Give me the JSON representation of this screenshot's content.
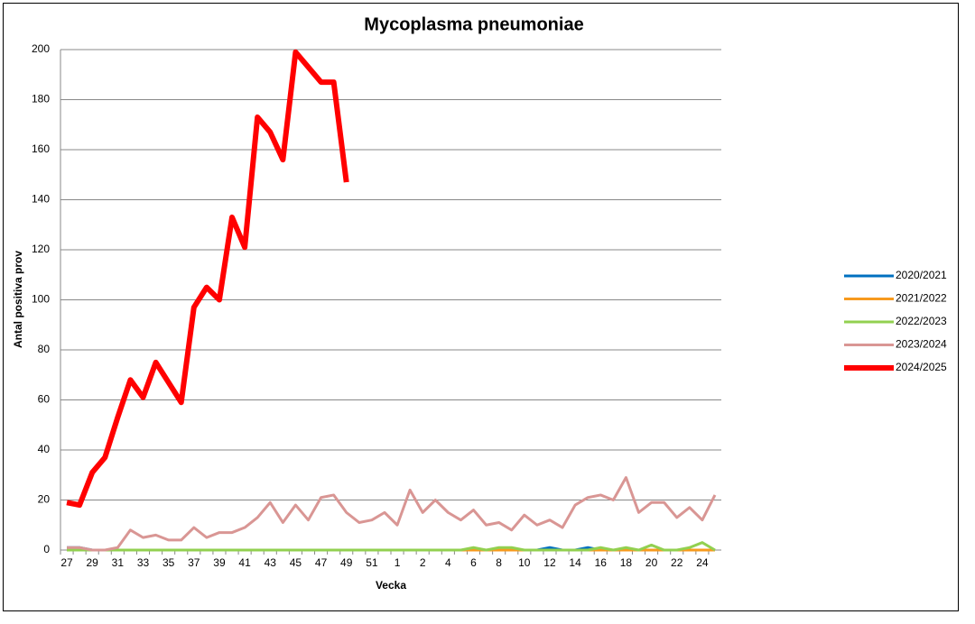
{
  "chart_data": {
    "type": "line",
    "title": "Mycoplasma pneumoniae",
    "xlabel": "Vecka",
    "ylabel": "Antal positiva prov",
    "categories": [
      "27",
      null,
      "29",
      null,
      "31",
      null,
      "33",
      null,
      "35",
      null,
      "37",
      null,
      "39",
      null,
      "41",
      null,
      "43",
      null,
      "45",
      null,
      "47",
      null,
      "49",
      null,
      "51",
      null,
      "1",
      null,
      "2",
      null,
      "4",
      null,
      "6",
      null,
      "8",
      null,
      "10",
      null,
      "12",
      null,
      "14",
      null,
      "16",
      null,
      "18",
      null,
      "20",
      null,
      "22",
      null,
      "24",
      null
    ],
    "ylim": [
      0,
      200
    ],
    "yticks": [
      0,
      20,
      40,
      60,
      80,
      100,
      120,
      140,
      160,
      180,
      200
    ],
    "grid": true,
    "legend": "right",
    "series": [
      {
        "name": "2020/2021",
        "color": "#0070c0",
        "width": 3,
        "values": [
          1,
          1,
          0,
          0,
          0,
          0,
          0,
          0,
          0,
          0,
          0,
          0,
          0,
          0,
          0,
          0,
          0,
          0,
          0,
          0,
          0,
          0,
          0,
          0,
          0,
          0,
          0,
          0,
          0,
          0,
          0,
          0,
          0,
          0,
          0,
          0,
          0,
          0,
          1,
          0,
          0,
          1,
          0,
          0,
          0,
          0,
          0,
          0,
          0,
          0,
          0,
          0
        ]
      },
      {
        "name": "2021/2022",
        "color": "#f79a1e",
        "width": 3,
        "values": [
          0,
          0,
          0,
          0,
          0,
          0,
          0,
          0,
          0,
          0,
          0,
          0,
          0,
          0,
          0,
          0,
          0,
          0,
          0,
          0,
          0,
          0,
          0,
          0,
          0,
          0,
          0,
          0,
          0,
          0,
          0,
          0,
          0,
          0,
          0,
          0,
          0,
          0,
          0,
          0,
          0,
          0,
          0,
          0,
          0,
          0,
          0,
          0,
          0,
          0,
          0,
          0
        ]
      },
      {
        "name": "2022/2023",
        "color": "#92d050",
        "width": 3,
        "values": [
          0,
          0,
          0,
          0,
          0,
          0,
          0,
          0,
          0,
          0,
          0,
          0,
          0,
          0,
          0,
          0,
          0,
          0,
          0,
          0,
          0,
          0,
          0,
          0,
          0,
          0,
          0,
          0,
          0,
          0,
          0,
          0,
          1,
          0,
          1,
          1,
          0,
          0,
          0,
          0,
          0,
          0,
          1,
          0,
          1,
          0,
          2,
          0,
          0,
          1,
          3,
          0
        ]
      },
      {
        "name": "2023/2024",
        "color": "#d99694",
        "width": 3,
        "values": [
          1,
          1,
          0,
          0,
          1,
          8,
          5,
          6,
          4,
          4,
          9,
          5,
          7,
          7,
          9,
          13,
          19,
          11,
          18,
          12,
          21,
          22,
          15,
          11,
          12,
          15,
          10,
          24,
          15,
          20,
          15,
          12,
          16,
          10,
          11,
          8,
          14,
          10,
          12,
          9,
          18,
          21,
          22,
          20,
          29,
          15,
          19,
          19,
          13,
          17,
          12,
          22
        ]
      },
      {
        "name": "2024/2025",
        "color": "#ff0000",
        "width": 6,
        "values": [
          19,
          18,
          31,
          37,
          53,
          68,
          61,
          75,
          67,
          59,
          97,
          105,
          100,
          133,
          121,
          173,
          167,
          156,
          199,
          193,
          187,
          187,
          147,
          null,
          null,
          null,
          null,
          null,
          null,
          null,
          null,
          null,
          null,
          null,
          null,
          null,
          null,
          null,
          null,
          null,
          null,
          null,
          null,
          null,
          null,
          null,
          null,
          null,
          null,
          null,
          null,
          null
        ]
      }
    ]
  }
}
